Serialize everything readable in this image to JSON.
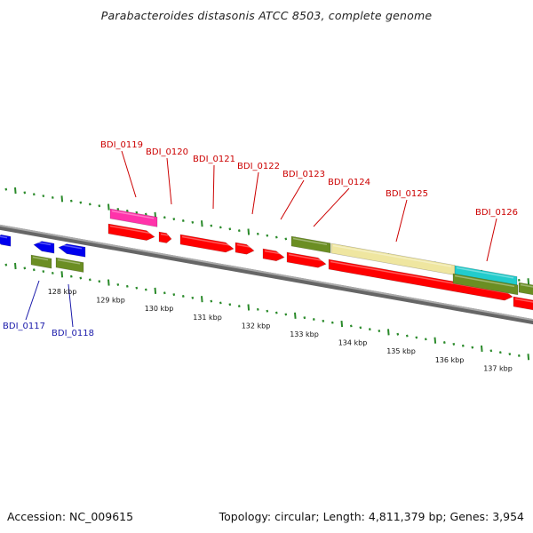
{
  "title": "Parabacteroides distasonis ATCC 8503, complete genome",
  "footer": {
    "accession": "Accession: NC_009615",
    "summary": "Topology: circular; Length: 4,811,379 bp; Genes: 3,954"
  },
  "colors": {
    "backbone": "#888888",
    "tick": "#2a8a2a",
    "label_top": "#cc0000",
    "label_bottom": "#1a1aaa",
    "gene_red": "#ff0000",
    "gene_blue": "#0000ee",
    "gene_olive": "#6b8e23",
    "gene_pink": "#ff33aa",
    "gene_khaki": "#efe6a0",
    "gene_cyan": "#22cccc"
  },
  "scale_labels": [
    "128 kbp",
    "129 kbp",
    "130 kbp",
    "131 kbp",
    "132 kbp",
    "133 kbp",
    "134 kbp",
    "135 kbp",
    "136 kbp",
    "137 kbp"
  ],
  "gene_labels_top": [
    "BDI_0119",
    "BDI_0120",
    "BDI_0121",
    "BDI_0122",
    "BDI_0123",
    "BDI_0124",
    "BDI_0125",
    "BDI_0126"
  ],
  "gene_labels_bottom": [
    "BDI_0117",
    "BDI_0118"
  ]
}
